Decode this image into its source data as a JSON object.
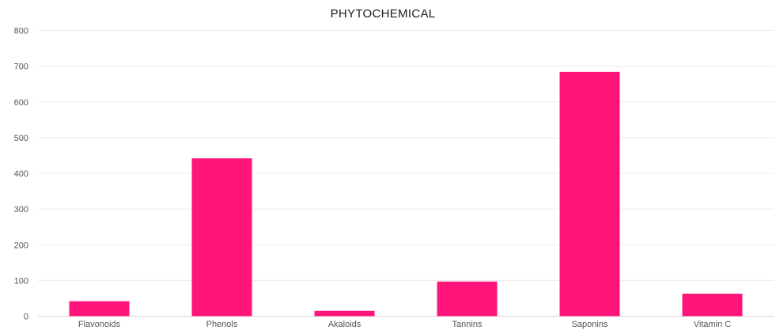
{
  "chart_data": {
    "type": "bar",
    "title": "PHYTOCHEMICAL",
    "xlabel": "",
    "ylabel": "",
    "categories": [
      "Flavonoids",
      "Phenols",
      "Akaloids",
      "Tannins",
      "Saponins",
      "Vitamin C"
    ],
    "values": [
      42,
      442,
      15,
      97,
      684,
      63
    ],
    "ylim": [
      0,
      800
    ],
    "yticks": [
      0,
      100,
      200,
      300,
      400,
      500,
      600,
      700,
      800
    ],
    "grid": true,
    "legend": "none",
    "bar_color": "#ff1479"
  }
}
